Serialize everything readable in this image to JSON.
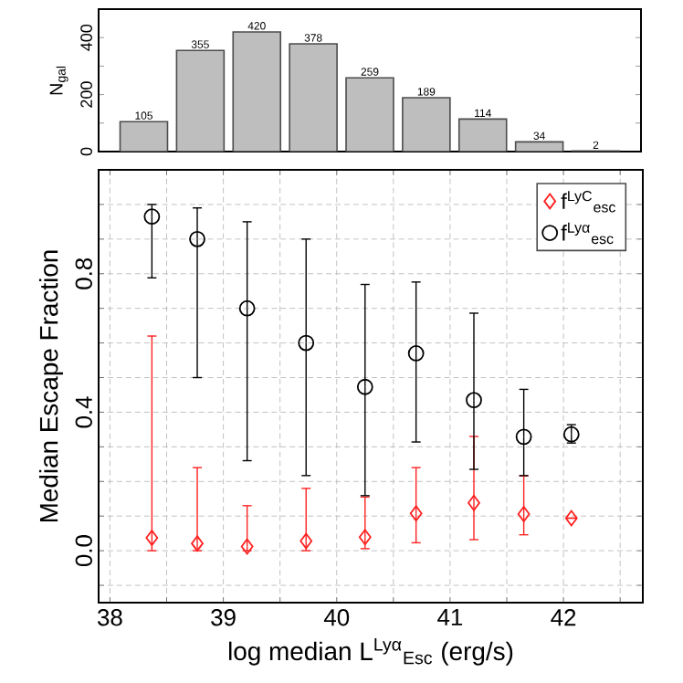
{
  "chart_data": [
    {
      "type": "bar",
      "ylabel": "N$_{gal}$",
      "x": [
        38.3,
        38.8,
        39.3,
        39.8,
        40.3,
        40.8,
        41.3,
        41.8,
        42.3
      ],
      "values": [
        105,
        355,
        420,
        378,
        259,
        189,
        114,
        34,
        2
      ],
      "color": "#bebebe",
      "data_labels": true,
      "xlim": [
        37.9,
        42.7
      ],
      "ylim": [
        0,
        500
      ],
      "yticks": [
        0,
        {
          "value": 100,
          "label": null
        },
        200,
        {
          "value": 300,
          "label": null
        },
        400
      ],
      "tick_labels": "y",
      "grid": false
    },
    {
      "type": "scatter",
      "xlabel": "log median L$^{Lyα}$$_{Esc}$ (erg/s)",
      "ylabel": "Median Escape Fraction",
      "legend": "top right",
      "grid": true,
      "xlim": [
        37.9,
        42.7
      ],
      "ylim": [
        -0.15,
        1.1
      ],
      "xticks": [
        38,
        {
          "value": 38.5,
          "label": null
        },
        39,
        {
          "value": 39.5,
          "label": null
        },
        40,
        {
          "value": 40.5,
          "label": null
        },
        41,
        {
          "value": 41.5,
          "label": null
        },
        42,
        {
          "value": 42.5,
          "label": null
        }
      ],
      "yticks": [
        {
          "value": -0.1,
          "label": null
        },
        {
          "value": 0,
          "label": "0.0"
        },
        {
          "value": 0.1,
          "label": null
        },
        {
          "value": 0.2,
          "label": null
        },
        {
          "value": 0.3,
          "label": null
        },
        {
          "value": 0.4,
          "label": "0.4"
        },
        {
          "value": 0.5,
          "label": null
        },
        {
          "value": 0.6,
          "label": null
        },
        {
          "value": 0.7,
          "label": null
        },
        {
          "value": 0.8,
          "label": "0.8"
        },
        {
          "value": 0.9,
          "label": null
        },
        {
          "value": 1.0,
          "label": null
        }
      ],
      "series": [
        {
          "name": "f$^{LyC}$$_{esc}$",
          "color": "#ff2020",
          "marker": "diamond",
          "x": [
            38.37,
            38.77,
            39.21,
            39.73,
            40.25,
            40.7,
            41.21,
            41.65,
            42.07
          ],
          "values": [
            0.037,
            0.021,
            0.012,
            0.028,
            0.039,
            0.108,
            0.138,
            0.106,
            0.094
          ],
          "errors": [
            [
              0.0,
              0.62
            ],
            [
              0.0,
              0.24
            ],
            [
              0.0,
              0.13
            ],
            [
              0.0,
              0.18
            ],
            [
              0.006,
              0.155
            ],
            [
              0.023,
              0.24
            ],
            [
              0.032,
              0.33
            ],
            [
              0.046,
              0.216
            ],
            null
          ]
        },
        {
          "name": "f$^{Lyα}$$_{esc}$",
          "color": "#000000",
          "marker": "circle",
          "x": [
            38.37,
            38.77,
            39.21,
            39.73,
            40.25,
            40.7,
            41.21,
            41.65,
            42.07
          ],
          "values": [
            0.965,
            0.9,
            0.7,
            0.6,
            0.473,
            0.57,
            0.435,
            0.329,
            0.336
          ],
          "errors": [
            [
              0.788,
              1.0
            ],
            [
              0.5,
              0.99
            ],
            [
              0.26,
              0.95
            ],
            [
              0.217,
              0.9
            ],
            [
              0.159,
              0.769
            ],
            [
              0.314,
              0.776
            ],
            [
              0.235,
              0.686
            ],
            [
              0.217,
              0.466
            ],
            [
              0.311,
              0.364
            ]
          ]
        }
      ]
    }
  ]
}
